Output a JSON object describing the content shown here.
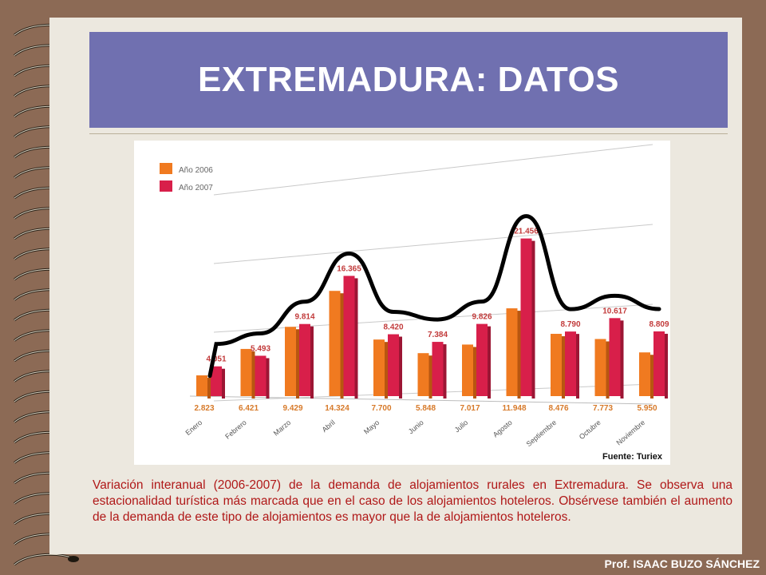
{
  "title": "EXTREMADURA: DATOS",
  "source_label": "Fuente: Turiex",
  "caption": "Variación interanual (2006-2007) de la demanda de alojamientos rurales en Extremadura. Se observa una estacionalidad turística más marcada que en el caso de los alojamientos hoteleros. Obsérvese también el aumento de la demanda de este tipo de alojamientos es mayor que la de alojamientos hoteleros.",
  "footer": "Prof. ISAAC BUZO SÁNCHEZ",
  "colors": {
    "background": "#8c6a55",
    "page": "#ece8df",
    "title_box": "#7070b0",
    "caption_text": "#b01818",
    "series_2006": "#f07a20",
    "series_2007": "#d81f4a"
  },
  "chart_data": {
    "type": "bar",
    "categories": [
      "Enero",
      "Febrero",
      "Marzo",
      "Abril",
      "Mayo",
      "Junio",
      "Julio",
      "Agosto",
      "Septiembre",
      "Octubre",
      "Noviembre"
    ],
    "series": [
      {
        "name": "Año 2006",
        "values": [
          2823,
          6421,
          9429,
          14324,
          7700,
          5848,
          7017,
          11948,
          8476,
          7773,
          5950
        ],
        "labels": [
          "2.823",
          "6.421",
          "9.429",
          "14.324",
          "7.700",
          "5.848",
          "7.017",
          "11.948",
          "8.476",
          "7.773",
          "5.950"
        ]
      },
      {
        "name": "Año 2007",
        "values": [
          4051,
          5493,
          9814,
          16365,
          8420,
          7384,
          9826,
          21456,
          8790,
          10617,
          8809
        ],
        "labels": [
          "4.051",
          "5.493",
          "9.814",
          "16.365",
          "8.420",
          "7.384",
          "9.826",
          "21.456",
          "8.790",
          "10.617",
          "8.809"
        ]
      }
    ],
    "ylim": [
      0,
      25000
    ],
    "legend_position": "top-left",
    "trend_line": true
  }
}
